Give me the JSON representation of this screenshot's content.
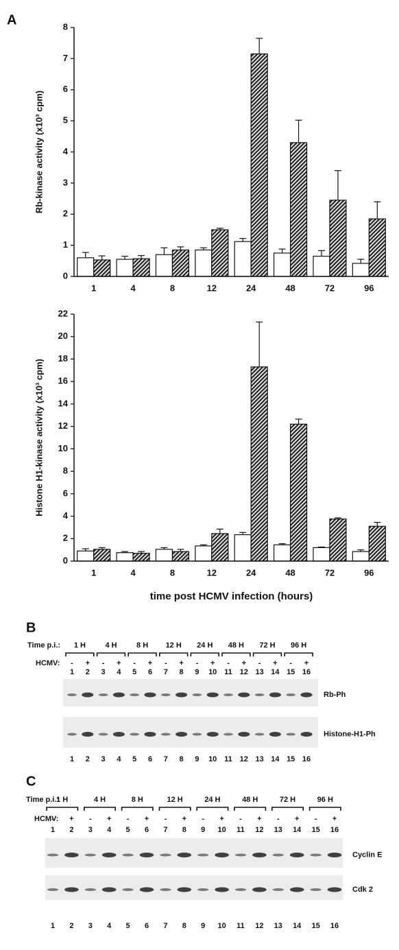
{
  "panel_labels": [
    "A",
    "B",
    "C"
  ],
  "chart_data": [
    {
      "type": "bar",
      "ylabel": "Rb-kinase activity (x10³ cpm)",
      "categories": [
        "1",
        "4",
        "8",
        "12",
        "24",
        "48",
        "72",
        "96"
      ],
      "ylim": [
        0,
        8
      ],
      "yticks": [
        0,
        1,
        2,
        3,
        4,
        5,
        6,
        7,
        8
      ],
      "series": [
        {
          "color": "#ffffff",
          "hatch": false,
          "values": [
            0.6,
            0.55,
            0.7,
            0.85,
            1.12,
            0.75,
            0.65,
            0.42
          ],
          "errors": [
            0.17,
            0.1,
            0.22,
            0.07,
            0.1,
            0.13,
            0.18,
            0.13
          ]
        },
        {
          "color": "#2b2b2b",
          "hatch": true,
          "values": [
            0.53,
            0.57,
            0.85,
            1.5,
            7.15,
            4.3,
            2.45,
            1.85
          ],
          "errors": [
            0.13,
            0.1,
            0.1,
            0.05,
            0.5,
            0.72,
            0.95,
            0.55
          ]
        }
      ]
    },
    {
      "type": "bar",
      "ylabel": "Histone H1-kinase activity (x10³ cpm)",
      "xlabel": "time post HCMV infection (hours)",
      "categories": [
        "1",
        "4",
        "8",
        "12",
        "24",
        "48",
        "72",
        "96"
      ],
      "ylim": [
        0,
        22
      ],
      "yticks": [
        0,
        2,
        4,
        6,
        8,
        10,
        12,
        14,
        16,
        18,
        20,
        22
      ],
      "series": [
        {
          "color": "#ffffff",
          "hatch": false,
          "values": [
            0.9,
            0.75,
            1.05,
            1.35,
            2.35,
            1.45,
            1.2,
            0.85
          ],
          "errors": [
            0.2,
            0.1,
            0.15,
            0.1,
            0.2,
            0.1,
            0.05,
            0.15
          ]
        },
        {
          "color": "#2b2b2b",
          "hatch": true,
          "values": [
            1.05,
            0.7,
            0.85,
            2.45,
            17.3,
            12.2,
            3.75,
            3.1
          ],
          "errors": [
            0.15,
            0.15,
            0.2,
            0.4,
            4.0,
            0.45,
            0.1,
            0.35
          ]
        }
      ]
    }
  ],
  "blots": [
    {
      "time_label": "Time p.i.:",
      "times": [
        "1 H",
        "4 H",
        "8 H",
        "12 H",
        "24 H",
        "48 H",
        "72 H",
        "96 H"
      ],
      "hcmv_label": "HCMV:",
      "signs": [
        "-",
        "+",
        "-",
        "+",
        "-",
        "+",
        "-",
        "+",
        "-",
        "+",
        "-",
        "+",
        "-",
        "+",
        "-",
        "+"
      ],
      "lanes": [
        1,
        2,
        3,
        4,
        5,
        6,
        7,
        8,
        9,
        10,
        11,
        12,
        13,
        14,
        15,
        16
      ],
      "rows": [
        "Rb-Ph",
        "Histone-H1-Ph"
      ]
    },
    {
      "time_label": "Time p.i.:",
      "times": [
        "1 H",
        "4 H",
        "8 H",
        "12 H",
        "24 H",
        "48 H",
        "72 H",
        "96 H"
      ],
      "hcmv_label": "HCMV:",
      "signs": [
        "-",
        "+",
        "-",
        "+",
        "-",
        "+",
        "-",
        "+",
        "-",
        "+",
        "-",
        "+",
        "-",
        "+",
        "-",
        "+"
      ],
      "lanes": [
        1,
        2,
        3,
        4,
        5,
        6,
        7,
        8,
        9,
        10,
        11,
        12,
        13,
        14,
        15,
        16
      ],
      "rows": [
        "Cyclin E",
        "Cdk 2"
      ]
    }
  ]
}
